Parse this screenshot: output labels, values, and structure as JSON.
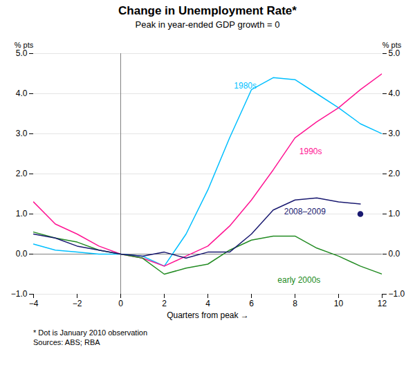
{
  "chart_data": {
    "type": "line",
    "title": "Change in Unemployment Rate*",
    "subtitle": "Peak in year-ended GDP growth = 0",
    "xlabel": "Quarters from peak",
    "ylabel": "% pts",
    "y2label": "% pts",
    "xlim": [
      -4,
      12
    ],
    "ylim": [
      -1,
      5
    ],
    "xticks": [
      -4,
      -2,
      0,
      2,
      4,
      6,
      8,
      10,
      12
    ],
    "yticks": [
      -1,
      0,
      1,
      2,
      3,
      4,
      5
    ],
    "grid": "y",
    "hlines": [
      0
    ],
    "vlines": [
      0
    ],
    "x": [
      -4,
      -3,
      -2,
      -1,
      0,
      1,
      2,
      3,
      4,
      5,
      6,
      7,
      8,
      9,
      10,
      11,
      12
    ],
    "series": [
      {
        "name": "1980s",
        "color": "#00BFFF",
        "values": [
          0.25,
          0.1,
          0.05,
          0.0,
          0.0,
          -0.05,
          -0.3,
          0.5,
          1.6,
          2.9,
          4.1,
          4.4,
          4.35,
          4.0,
          3.65,
          3.25,
          3.0
        ]
      },
      {
        "name": "1990s",
        "color": "#FF1493",
        "values": [
          1.3,
          0.75,
          0.5,
          0.2,
          0.0,
          -0.1,
          -0.3,
          -0.05,
          0.2,
          0.7,
          1.35,
          2.1,
          2.9,
          3.3,
          3.65,
          4.1,
          4.5
        ]
      },
      {
        "name": "early 2000s",
        "color": "#228B22",
        "values": [
          0.55,
          0.4,
          0.3,
          0.1,
          0.0,
          -0.1,
          -0.5,
          -0.35,
          -0.25,
          0.1,
          0.35,
          0.45,
          0.45,
          0.15,
          -0.05,
          -0.3,
          -0.5
        ]
      },
      {
        "name": "2008–2009",
        "color": "#191970",
        "values": [
          0.5,
          0.4,
          0.2,
          0.1,
          0.0,
          -0.05,
          0.05,
          -0.1,
          0.05,
          0.05,
          0.5,
          1.1,
          1.35,
          1.4,
          1.3,
          1.25,
          null
        ]
      }
    ],
    "points": [
      {
        "x": 11,
        "y": 1.0,
        "color": "#191970",
        "marker": "o"
      }
    ],
    "annotations": [
      {
        "text": "1980s",
        "x": 5.2,
        "y": 4.2,
        "color": "#00BFFF"
      },
      {
        "text": "1990s",
        "x": 8.2,
        "y": 2.55,
        "color": "#FF1493"
      },
      {
        "text": "early 2000s",
        "x": 7.2,
        "y": -0.65,
        "color": "#228B22"
      },
      {
        "text": "2008–2009",
        "x": 7.5,
        "y": 1.05,
        "color": "#191970"
      }
    ],
    "footnotes": [
      "*   Dot is January 2010 observation",
      "Sources: ABS; RBA"
    ]
  }
}
